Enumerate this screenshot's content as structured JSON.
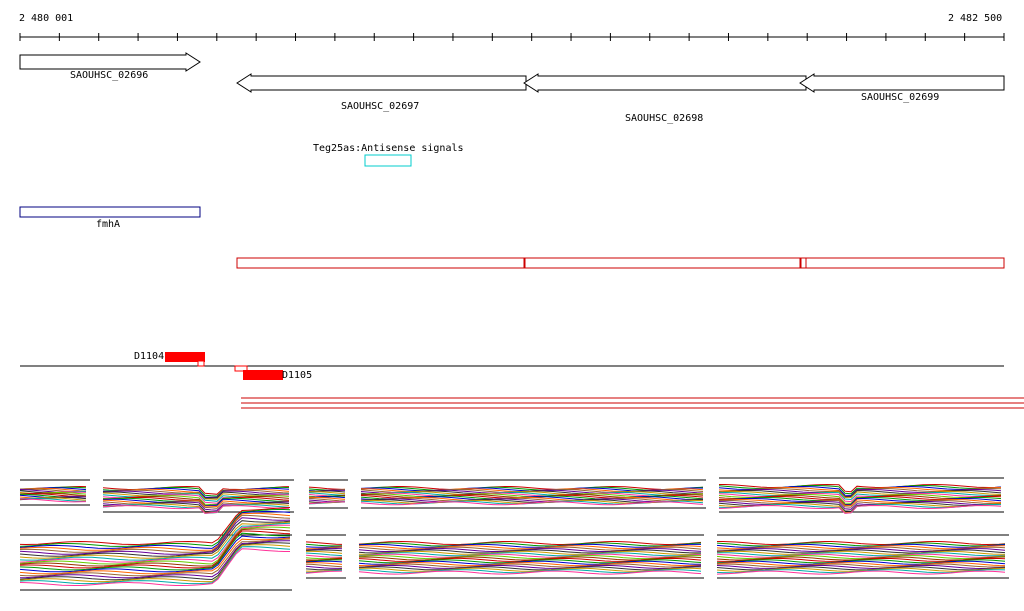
{
  "ruler": {
    "start_label": "2 480 001",
    "end_label": "2 482 500"
  },
  "genes": [
    {
      "name": "SAOUHSC_02696",
      "strand": "+"
    },
    {
      "name": "SAOUHSC_02697",
      "strand": "-"
    },
    {
      "name": "SAOUHSC_02698",
      "strand": "-"
    },
    {
      "name": "SAOUHSC_02699",
      "strand": "-"
    }
  ],
  "antisense": {
    "label": "Teg25as:Antisense signals"
  },
  "fmha": {
    "label": "fmhA"
  },
  "probes": [
    {
      "label": "D1104"
    },
    {
      "label": "D1105"
    }
  ],
  "colors": {
    "gene_outline": "#000000",
    "antisense_box": "#00cccc",
    "fmha_box": "#000080",
    "transcript_box": "#cc0000",
    "probe_fill": "#ff0000"
  }
}
